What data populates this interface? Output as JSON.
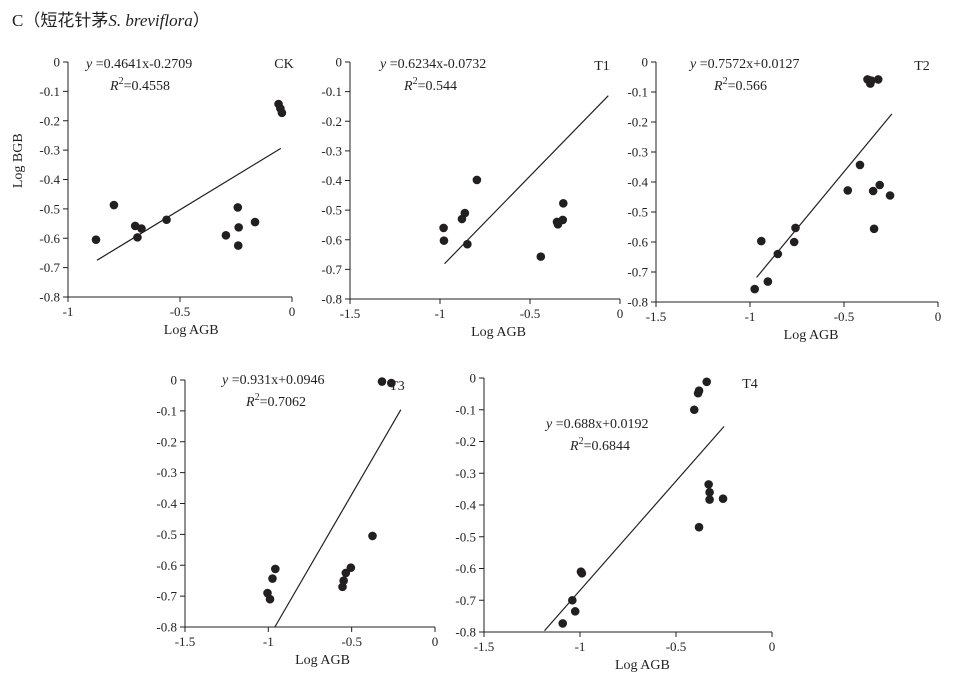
{
  "figure": {
    "title_prefix": "C（短花针茅",
    "title_species": "S. breviflora",
    "title_suffix": "）"
  },
  "colors": {
    "ink": "#231f20"
  },
  "chart_data": [
    {
      "type": "scatter",
      "label": "CK",
      "equation": {
        "var": "y",
        "text": " =0.4641x-0.2709",
        "r2_label": "R",
        "r2_sup": "2",
        "r2_value": "=0.4558"
      },
      "xlabel": "Log AGB",
      "ylabel": "Log BGB",
      "xlim": [
        -1,
        0
      ],
      "ylim": [
        -0.8,
        0
      ],
      "xticks": [
        -1,
        -0.5,
        0
      ],
      "xtick_labels": [
        "-1",
        "-0.5",
        "0"
      ],
      "yticks": [
        0,
        -0.1,
        -0.2,
        -0.3,
        -0.4,
        -0.5,
        -0.6,
        -0.7,
        -0.8
      ],
      "ytick_labels": [
        "0",
        "-0.1",
        "-0.2",
        "-0.3",
        "-0.4",
        "-0.5",
        "-0.6",
        "-0.7",
        "-0.8"
      ],
      "trendline": {
        "slope": 0.4641,
        "intercept": -0.2709,
        "x_range": [
          -0.87,
          -0.05
        ]
      },
      "points": [
        [
          -0.875,
          -0.605
        ],
        [
          -0.795,
          -0.487
        ],
        [
          -0.7,
          -0.558
        ],
        [
          -0.69,
          -0.597
        ],
        [
          -0.672,
          -0.567
        ],
        [
          -0.56,
          -0.537
        ],
        [
          -0.295,
          -0.59
        ],
        [
          -0.242,
          -0.495
        ],
        [
          -0.238,
          -0.563
        ],
        [
          -0.24,
          -0.625
        ],
        [
          -0.165,
          -0.545
        ],
        [
          -0.06,
          -0.143
        ],
        [
          -0.052,
          -0.158
        ],
        [
          -0.045,
          -0.173
        ]
      ]
    },
    {
      "type": "scatter",
      "label": "T1",
      "equation": {
        "var": "y",
        "text": " =0.6234x-0.0732",
        "r2_label": "R",
        "r2_sup": "2",
        "r2_value": "=0.544"
      },
      "xlabel": "Log AGB",
      "ylabel": "",
      "xlim": [
        -1.5,
        0
      ],
      "ylim": [
        -0.8,
        0
      ],
      "xticks": [
        -1.5,
        -1,
        -0.5,
        0
      ],
      "xtick_labels": [
        "-1.5",
        "-1",
        "-0.5",
        "0"
      ],
      "yticks": [
        0,
        -0.1,
        -0.2,
        -0.3,
        -0.4,
        -0.5,
        -0.6,
        -0.7,
        -0.8
      ],
      "ytick_labels": [
        "0",
        "-0.1",
        "-0.2",
        "-0.3",
        "-0.4",
        "-0.5",
        "-0.6",
        "-0.7",
        "-0.8"
      ],
      "trendline": {
        "slope": 0.6234,
        "intercept": -0.0732,
        "x_range": [
          -0.975,
          -0.065
        ]
      },
      "points": [
        [
          -0.98,
          -0.56
        ],
        [
          -0.978,
          -0.603
        ],
        [
          -0.878,
          -0.53
        ],
        [
          -0.862,
          -0.51
        ],
        [
          -0.848,
          -0.615
        ],
        [
          -0.795,
          -0.398
        ],
        [
          -0.44,
          -0.657
        ],
        [
          -0.35,
          -0.54
        ],
        [
          -0.345,
          -0.548
        ],
        [
          -0.318,
          -0.533
        ],
        [
          -0.315,
          -0.477
        ]
      ]
    },
    {
      "type": "scatter",
      "label": "T2",
      "equation": {
        "var": "y",
        "text": " =0.7572x+0.0127",
        "r2_label": "R",
        "r2_sup": "2",
        "r2_value": "=0.566"
      },
      "xlabel": "Log AGB",
      "ylabel": "",
      "xlim": [
        -1.5,
        0
      ],
      "ylim": [
        -0.8,
        0
      ],
      "xticks": [
        -1.5,
        -1,
        -0.5,
        0
      ],
      "xtick_labels": [
        "-1.5",
        "-1",
        "-0.5",
        "0"
      ],
      "yticks": [
        0,
        -0.1,
        -0.2,
        -0.3,
        -0.4,
        -0.5,
        -0.6,
        -0.7,
        -0.8
      ],
      "ytick_labels": [
        "0",
        "-0.1",
        "-0.2",
        "-0.3",
        "-0.4",
        "-0.5",
        "-0.6",
        "-0.7",
        "-0.8"
      ],
      "trendline": {
        "slope": 0.7572,
        "intercept": 0.0127,
        "x_range": [
          -0.965,
          -0.245
        ]
      },
      "points": [
        [
          -0.975,
          -0.757
        ],
        [
          -0.94,
          -0.597
        ],
        [
          -0.905,
          -0.732
        ],
        [
          -0.852,
          -0.64
        ],
        [
          -0.765,
          -0.6
        ],
        [
          -0.758,
          -0.553
        ],
        [
          -0.48,
          -0.428
        ],
        [
          -0.415,
          -0.343
        ],
        [
          -0.375,
          -0.058
        ],
        [
          -0.36,
          -0.072
        ],
        [
          -0.355,
          -0.062
        ],
        [
          -0.318,
          -0.058
        ],
        [
          -0.345,
          -0.43
        ],
        [
          -0.34,
          -0.556
        ],
        [
          -0.31,
          -0.41
        ],
        [
          -0.255,
          -0.445
        ]
      ]
    },
    {
      "type": "scatter",
      "label": "T3",
      "equation": {
        "var": "y",
        "text": " =0.931x+0.0946",
        "r2_label": "R",
        "r2_sup": "2",
        "r2_value": "=0.7062"
      },
      "xlabel": "Log AGB",
      "ylabel": "",
      "xlim": [
        -1.5,
        0
      ],
      "ylim": [
        -0.8,
        0
      ],
      "xticks": [
        -1.5,
        -1,
        -0.5,
        0
      ],
      "xtick_labels": [
        "-1.5",
        "-1",
        "-0.5",
        "0"
      ],
      "yticks": [
        0,
        -0.1,
        -0.2,
        -0.3,
        -0.4,
        -0.5,
        -0.6,
        -0.7,
        -0.8
      ],
      "ytick_labels": [
        "0",
        "-0.1",
        "-0.2",
        "-0.3",
        "-0.4",
        "-0.5",
        "-0.6",
        "-0.7",
        "-0.8"
      ],
      "trendline": {
        "slope": 0.931,
        "intercept": 0.0946,
        "x_range": [
          -0.96,
          -0.205
        ]
      },
      "points": [
        [
          -1.005,
          -0.69
        ],
        [
          -0.99,
          -0.71
        ],
        [
          -0.975,
          -0.643
        ],
        [
          -0.958,
          -0.612
        ],
        [
          -0.555,
          -0.67
        ],
        [
          -0.548,
          -0.65
        ],
        [
          -0.535,
          -0.625
        ],
        [
          -0.505,
          -0.608
        ],
        [
          -0.375,
          -0.505
        ],
        [
          -0.318,
          -0.005
        ],
        [
          -0.262,
          -0.01
        ]
      ]
    },
    {
      "type": "scatter",
      "label": "T4",
      "equation": {
        "var": "y",
        "text": " =0.688x+0.0192",
        "r2_label": "R",
        "r2_sup": "2",
        "r2_value": "=0.6844"
      },
      "xlabel": "Log AGB",
      "ylabel": "",
      "xlim": [
        -1.5,
        0
      ],
      "ylim": [
        -0.8,
        0
      ],
      "xticks": [
        -1.5,
        -1,
        -0.5,
        0
      ],
      "xtick_labels": [
        "-1.5",
        "-1",
        "-0.5",
        "0"
      ],
      "yticks": [
        0,
        -0.1,
        -0.2,
        -0.3,
        -0.4,
        -0.5,
        -0.6,
        -0.7,
        -0.8
      ],
      "ytick_labels": [
        "0",
        "-0.1",
        "-0.2",
        "-0.3",
        "-0.4",
        "-0.5",
        "-0.6",
        "-0.7",
        "-0.8"
      ],
      "trendline": {
        "slope": 0.688,
        "intercept": 0.0192,
        "x_range": [
          -1.185,
          -0.25
        ]
      },
      "points": [
        [
          -1.09,
          -0.773
        ],
        [
          -1.04,
          -0.7
        ],
        [
          -1.025,
          -0.735
        ],
        [
          -0.995,
          -0.61
        ],
        [
          -0.99,
          -0.615
        ],
        [
          -0.405,
          -0.1
        ],
        [
          -0.385,
          -0.048
        ],
        [
          -0.38,
          -0.04
        ],
        [
          -0.34,
          -0.012
        ],
        [
          -0.38,
          -0.47
        ],
        [
          -0.33,
          -0.335
        ],
        [
          -0.325,
          -0.36
        ],
        [
          -0.325,
          -0.383
        ],
        [
          -0.255,
          -0.38
        ]
      ]
    }
  ]
}
